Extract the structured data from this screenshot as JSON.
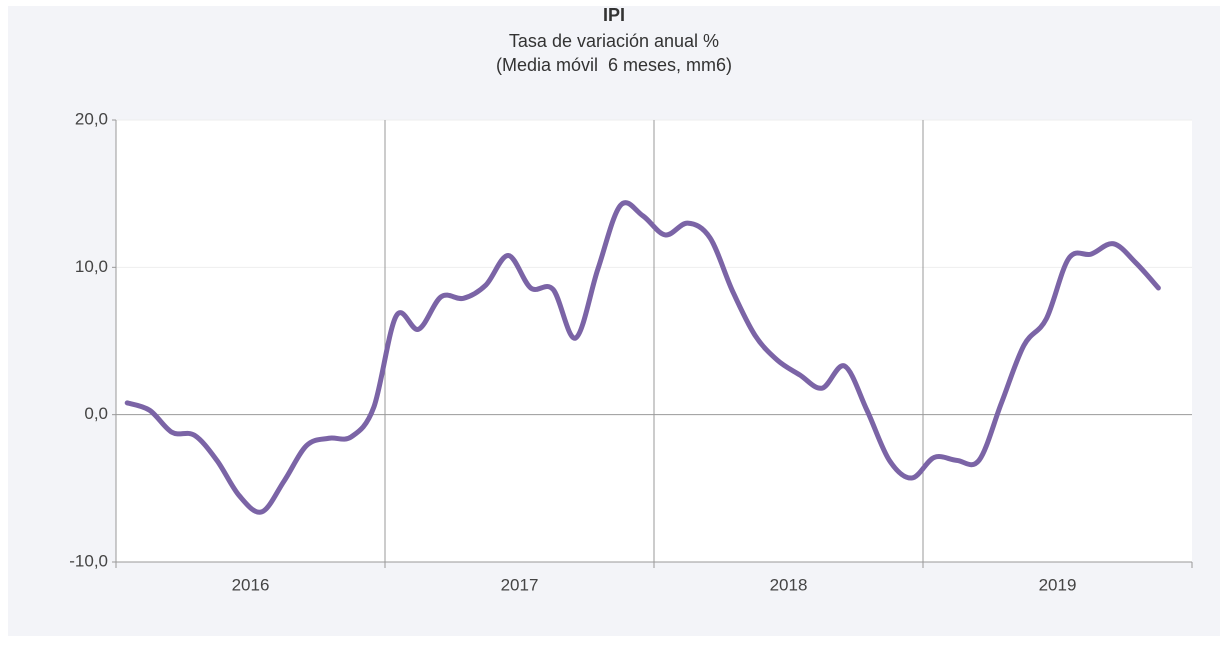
{
  "chart_data": {
    "type": "line",
    "title": "IPI",
    "subtitle": "Tasa de variación anual %",
    "subtitle2": "(Media móvil  6 meses, mm6)",
    "categories": [
      null,
      null,
      null,
      null,
      null,
      null,
      "2016",
      null,
      null,
      null,
      null,
      null,
      null,
      null,
      null,
      null,
      null,
      null,
      "2017",
      null,
      null,
      null,
      null,
      null,
      null,
      null,
      null,
      null,
      null,
      null,
      "2018",
      null,
      null,
      null,
      null,
      null,
      null,
      null,
      null,
      null,
      null,
      null,
      "2019",
      null,
      null,
      null,
      null
    ],
    "series": [
      {
        "name": "IPI",
        "color": "#7b64a6",
        "values": [
          0.8,
          0.3,
          -1.2,
          -1.4,
          -3.1,
          -5.5,
          -6.6,
          -4.5,
          -2.1,
          -1.6,
          -1.5,
          0.5,
          6.7,
          5.8,
          8.0,
          7.9,
          8.8,
          10.8,
          8.6,
          8.5,
          5.2,
          9.9,
          14.2,
          13.5,
          12.2,
          13.0,
          12.0,
          8.4,
          5.4,
          3.7,
          2.7,
          1.8,
          3.3,
          0.3,
          -3.1,
          -4.3,
          -2.9,
          -3.1,
          -3.1,
          0.8,
          4.7,
          6.5,
          10.6,
          10.9,
          11.6,
          10.3,
          8.6
        ]
      }
    ],
    "ylim": [
      -10,
      20
    ],
    "yticks": [
      {
        "value": -10,
        "label": "-10,0"
      },
      {
        "value": 0,
        "label": "0,0"
      },
      {
        "value": 10,
        "label": "10,0"
      },
      {
        "value": 20,
        "label": "20,0"
      }
    ],
    "grid": true
  }
}
